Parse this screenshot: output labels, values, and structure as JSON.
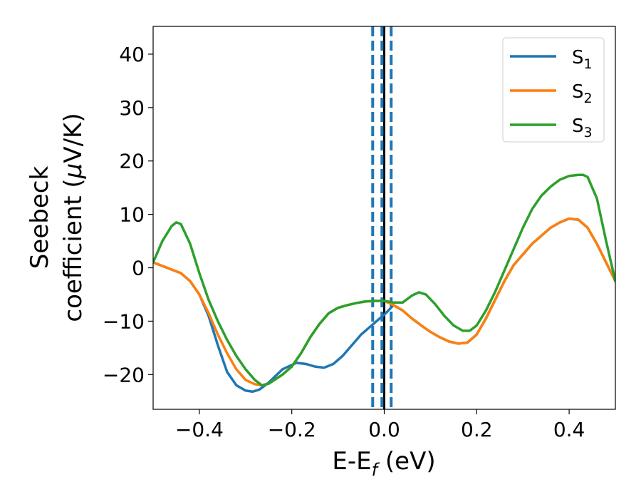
{
  "chart_data": {
    "type": "line",
    "title": "",
    "xlabel": {
      "main": "E-E",
      "sub": "f",
      "unit": " (eV)"
    },
    "ylabel": {
      "line1": "Seebeck",
      "line2_pre": "coefficient  (",
      "mu": "μ",
      "line2_post": "V/K)"
    },
    "xlim": [
      -0.5,
      0.5
    ],
    "ylim": [
      -26.5,
      45.2
    ],
    "x_ticks": [
      -0.4,
      -0.2,
      0.0,
      0.2,
      0.4
    ],
    "x_tick_labels": [
      "−0.4",
      "−0.2",
      "0.0",
      "0.2",
      "0.4"
    ],
    "y_ticks": [
      -20,
      -10,
      0,
      10,
      20,
      30,
      40
    ],
    "y_tick_labels": [
      "−20",
      "−10",
      "0",
      "10",
      "20",
      "30",
      "40"
    ],
    "grid": false,
    "legend_position": "top-right",
    "vertical_lines": [
      {
        "name": "fermi-level",
        "x": 0.0,
        "style": "solid",
        "color": "#000000"
      },
      {
        "name": "left-dashed-bound",
        "x": -0.025,
        "style": "dashed",
        "color": "#1f77b4"
      },
      {
        "name": "right-dashed-bound",
        "x": 0.015,
        "style": "dashed",
        "color": "#1f77b4"
      },
      {
        "name": "center-dashed-line",
        "x": -0.005,
        "style": "dashed",
        "color": "#1f77b4"
      }
    ],
    "series": [
      {
        "name": "S",
        "sub": "1",
        "color": "#1f77b4",
        "x": [
          -0.5,
          -0.47,
          -0.44,
          -0.42,
          -0.4,
          -0.38,
          -0.36,
          -0.34,
          -0.32,
          -0.3,
          -0.285,
          -0.27,
          -0.25,
          -0.22,
          -0.19,
          -0.17,
          -0.15,
          -0.13,
          -0.11,
          -0.09,
          -0.07,
          -0.05,
          -0.03,
          -0.01,
          0.0,
          0.02,
          0.04,
          0.06,
          0.08,
          0.1,
          0.12,
          0.14,
          0.16,
          0.18,
          0.2,
          0.22,
          0.24,
          0.26,
          0.28,
          0.3,
          0.32,
          0.34,
          0.36,
          0.38,
          0.4,
          0.42,
          0.44,
          0.46,
          0.48,
          0.5
        ],
        "y": [
          1.0,
          0.0,
          -1.0,
          -2.5,
          -5.0,
          -9.0,
          -14.5,
          -19.5,
          -22.0,
          -23.0,
          -23.2,
          -22.8,
          -21.5,
          -19.0,
          -17.8,
          -18.0,
          -18.5,
          -18.7,
          -18.0,
          -16.5,
          -14.5,
          -12.5,
          -11.0,
          -9.5,
          -8.8,
          -7.0,
          -8.0,
          -9.5,
          -10.8,
          -12.0,
          -13.0,
          -13.8,
          -14.2,
          -14.0,
          -12.5,
          -9.5,
          -6.0,
          -2.5,
          0.5,
          2.5,
          4.5,
          6.0,
          7.5,
          8.5,
          9.2,
          9.0,
          7.5,
          4.5,
          1.0,
          -2.5
        ]
      },
      {
        "name": "S",
        "sub": "2",
        "color": "#ff7f0e",
        "x": [
          -0.5,
          -0.47,
          -0.44,
          -0.42,
          -0.4,
          -0.38,
          -0.36,
          -0.34,
          -0.32,
          -0.3,
          -0.28,
          -0.265,
          -0.25,
          -0.22,
          -0.2,
          -0.18,
          -0.16,
          -0.14,
          -0.12,
          -0.1,
          -0.08,
          -0.06,
          -0.04,
          -0.02,
          0.0,
          0.02,
          0.04,
          0.06,
          0.08,
          0.1,
          0.12,
          0.14,
          0.16,
          0.18,
          0.2,
          0.22,
          0.24,
          0.26,
          0.28,
          0.3,
          0.32,
          0.34,
          0.36,
          0.38,
          0.4,
          0.42,
          0.44,
          0.46,
          0.48,
          0.5
        ],
        "y": [
          1.0,
          0.0,
          -1.0,
          -2.5,
          -5.0,
          -8.5,
          -12.5,
          -16.0,
          -19.0,
          -21.0,
          -21.8,
          -22.0,
          -21.7,
          -20.0,
          -18.5,
          -16.0,
          -13.0,
          -10.5,
          -8.5,
          -7.5,
          -7.0,
          -6.6,
          -6.3,
          -6.2,
          -6.2,
          -7.0,
          -8.0,
          -9.5,
          -10.8,
          -12.0,
          -13.0,
          -13.8,
          -14.2,
          -14.0,
          -12.5,
          -9.5,
          -6.0,
          -2.5,
          0.5,
          2.5,
          4.5,
          6.0,
          7.5,
          8.5,
          9.2,
          9.0,
          7.5,
          4.5,
          1.0,
          -2.5
        ]
      },
      {
        "name": "S",
        "sub": "3",
        "color": "#2ca02c",
        "x": [
          -0.5,
          -0.48,
          -0.46,
          -0.45,
          -0.44,
          -0.42,
          -0.4,
          -0.38,
          -0.36,
          -0.34,
          -0.32,
          -0.3,
          -0.28,
          -0.265,
          -0.25,
          -0.22,
          -0.2,
          -0.18,
          -0.16,
          -0.14,
          -0.12,
          -0.1,
          -0.08,
          -0.06,
          -0.04,
          -0.02,
          0.0,
          0.02,
          0.04,
          0.06,
          0.075,
          0.09,
          0.11,
          0.13,
          0.15,
          0.17,
          0.185,
          0.2,
          0.22,
          0.24,
          0.26,
          0.28,
          0.3,
          0.32,
          0.34,
          0.36,
          0.38,
          0.4,
          0.42,
          0.43,
          0.44,
          0.46,
          0.48,
          0.5
        ],
        "y": [
          1.0,
          5.0,
          7.8,
          8.5,
          8.2,
          4.5,
          -1.0,
          -6.0,
          -10.0,
          -13.5,
          -16.5,
          -19.0,
          -21.0,
          -22.0,
          -21.7,
          -20.0,
          -18.5,
          -16.0,
          -13.0,
          -10.5,
          -8.5,
          -7.5,
          -7.0,
          -6.6,
          -6.3,
          -6.2,
          -6.2,
          -6.5,
          -6.5,
          -5.2,
          -4.6,
          -5.0,
          -6.8,
          -9.0,
          -10.8,
          -11.8,
          -11.8,
          -10.8,
          -8.0,
          -4.5,
          -0.5,
          3.5,
          7.5,
          11.0,
          13.5,
          15.2,
          16.5,
          17.2,
          17.4,
          17.4,
          17.0,
          13.0,
          5.0,
          -2.5
        ]
      }
    ]
  }
}
